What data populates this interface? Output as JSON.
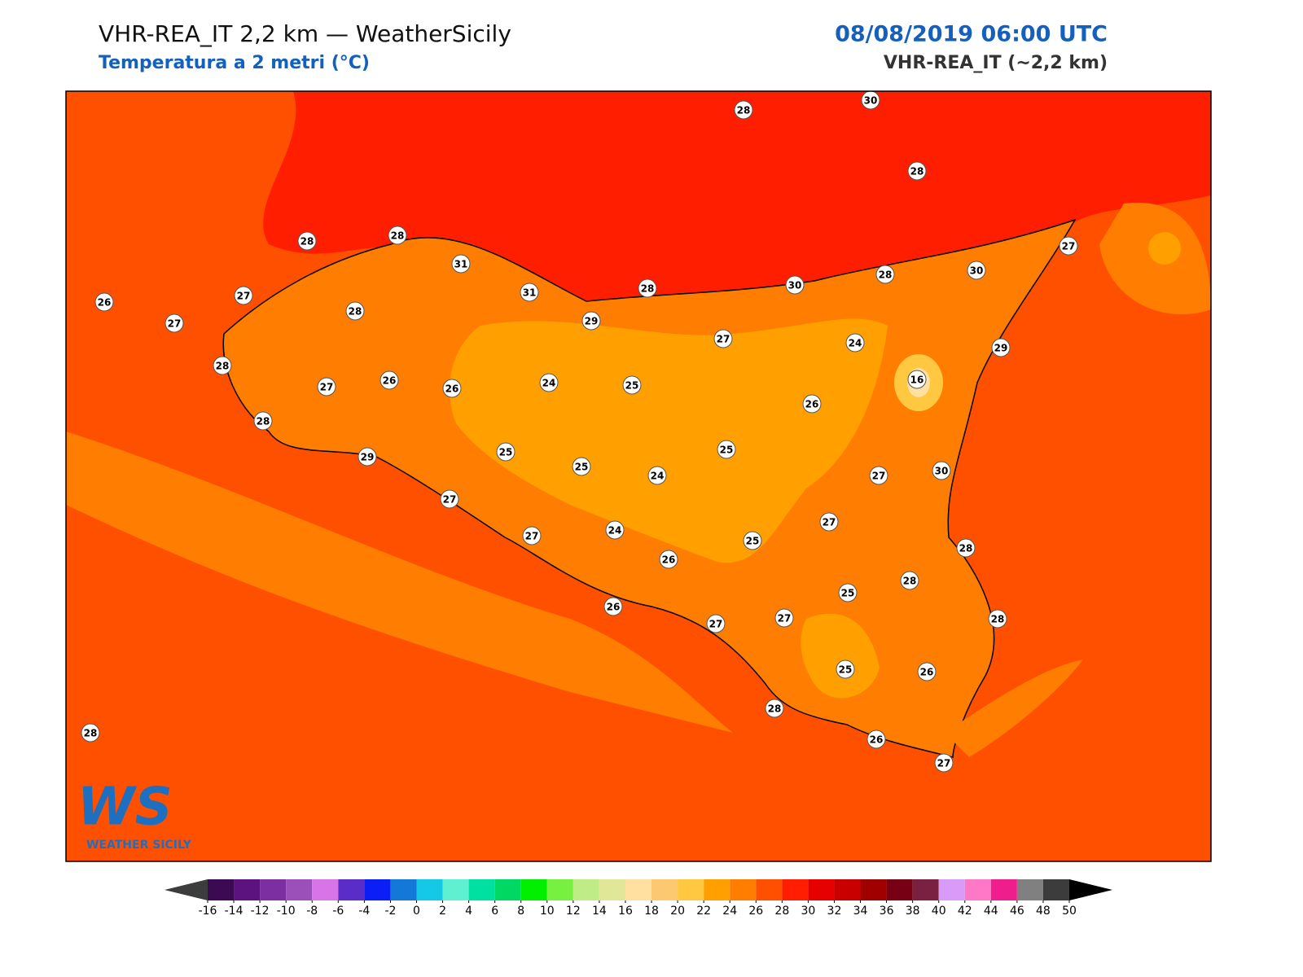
{
  "header": {
    "title": "VHR-REA_IT 2,2 km — WeatherSicily",
    "subtitle": "Temperatura a 2 metri (°C)",
    "datetime": "08/08/2019 06:00 UTC",
    "model": "VHR-REA_IT (~2,2 km)"
  },
  "map": {
    "background_color": "#ff5000",
    "stations": [
      28,
      30,
      28,
      28,
      28,
      31,
      31,
      28,
      30,
      28,
      30,
      27,
      26,
      27,
      27,
      28,
      29,
      27,
      24,
      29,
      28,
      27,
      26,
      26,
      24,
      25,
      16,
      26,
      28,
      25,
      25,
      29,
      25,
      24,
      27,
      30,
      27,
      27,
      27,
      24,
      25,
      26,
      28,
      28,
      25,
      26,
      27,
      27,
      28,
      25,
      26,
      28,
      26,
      27,
      28
    ]
  },
  "logo": {
    "mark": "WS",
    "text": "Weather Sicily"
  },
  "colorbar": {
    "ticks": [
      -16,
      -14,
      -12,
      -10,
      -8,
      -6,
      -4,
      -2,
      0,
      2,
      4,
      6,
      8,
      10,
      12,
      14,
      16,
      18,
      20,
      22,
      24,
      26,
      28,
      30,
      32,
      34,
      36,
      38,
      40,
      42,
      44,
      46,
      48,
      50
    ],
    "colors": [
      "#3b0a52",
      "#5c127f",
      "#7b2fa0",
      "#9b4fb8",
      "#d973e8",
      "#5a2cc8",
      "#0a1ef5",
      "#1478d8",
      "#14c8e6",
      "#5ef0d0",
      "#00e0a0",
      "#00d864",
      "#00f000",
      "#78f040",
      "#c0ec88",
      "#e0e898",
      "#ffe0a0",
      "#fcc870",
      "#ffc840",
      "#ffa000",
      "#ff7d00",
      "#ff5000",
      "#ff1e00",
      "#e60000",
      "#c80000",
      "#a00000",
      "#780014",
      "#7a2040",
      "#d89cf8",
      "#ff78c8",
      "#f01e8c",
      "#808080",
      "#3c3c3c"
    ],
    "under_color": "#3c3c3c",
    "over_color": "#000000"
  }
}
